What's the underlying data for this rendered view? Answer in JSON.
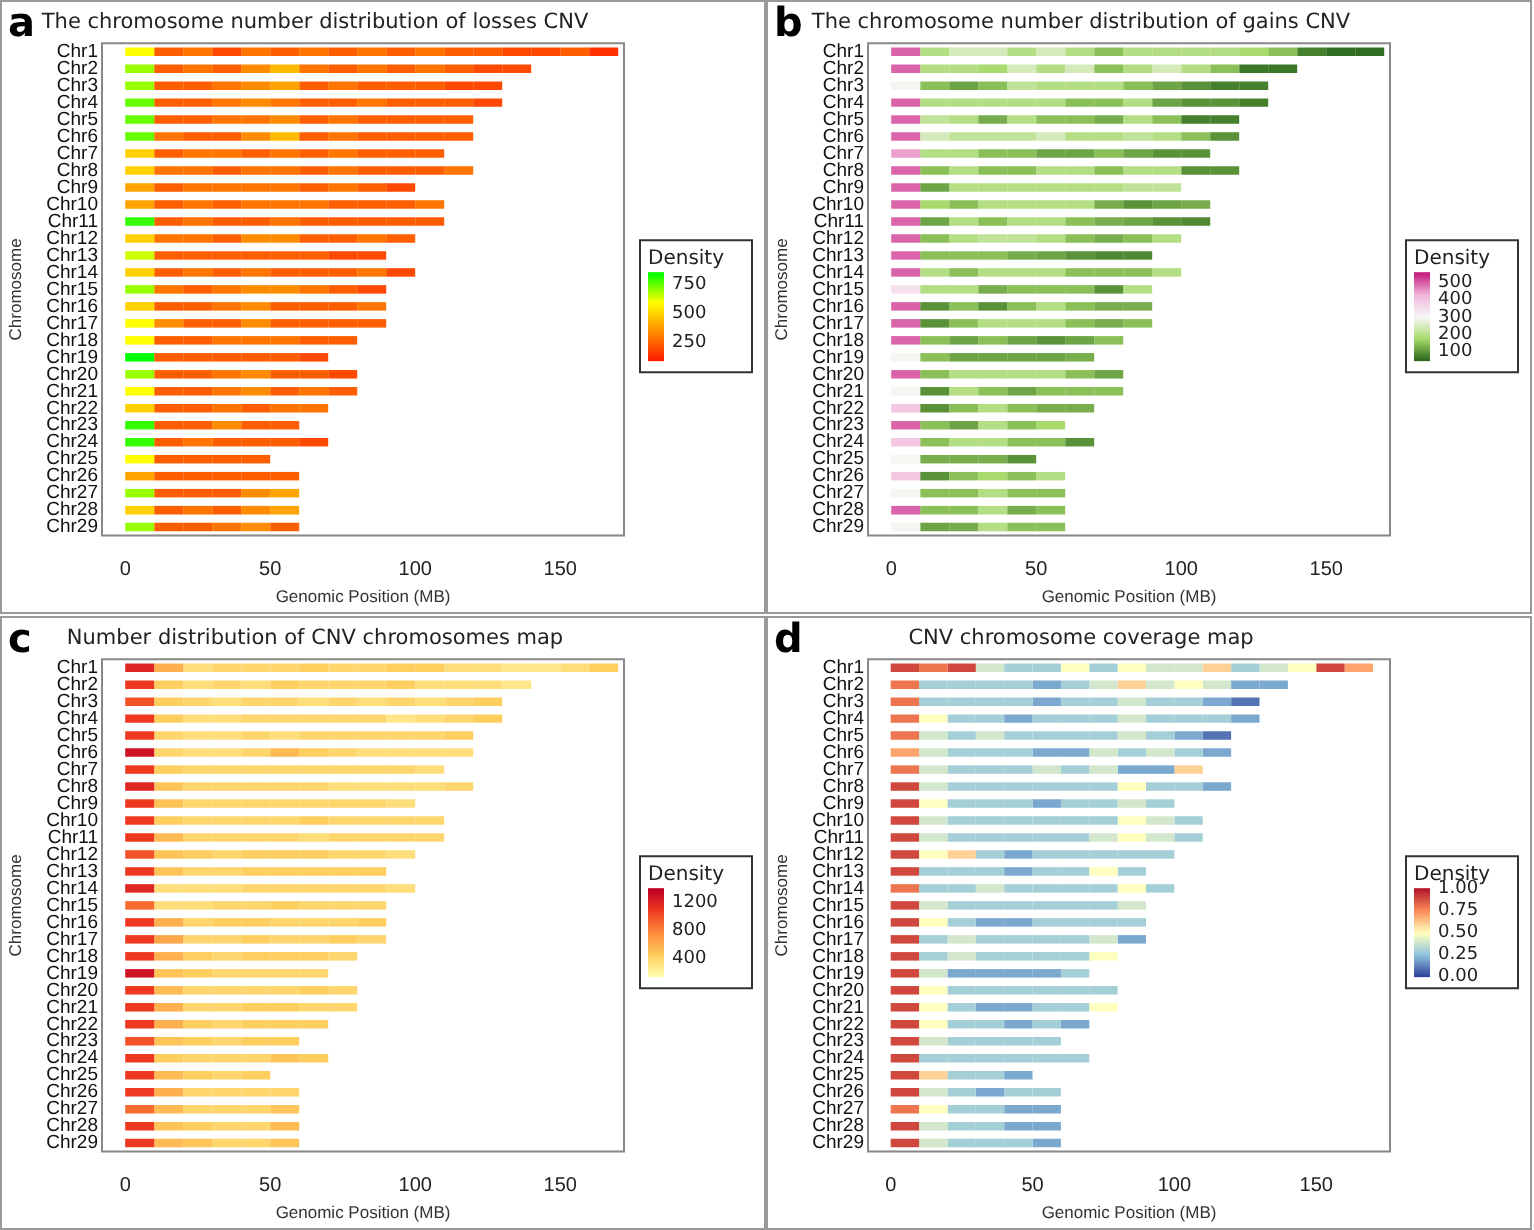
{
  "chart_data": [
    {
      "type": "heatmap",
      "title": "The chromosome number distribution of losses CNV",
      "annotations": [
        "a"
      ],
      "xlabel": "Genomic Position (MB)",
      "ylabel": "Chromosome",
      "clabel": "Density",
      "x": [
        5,
        15,
        25,
        35,
        45,
        55,
        65,
        75,
        85,
        95,
        105,
        115,
        125,
        135,
        145,
        155,
        165
      ],
      "xlim": [
        -8,
        172
      ],
      "xticks": [
        0,
        50,
        100,
        150
      ],
      "y_categories": [
        "Chr1",
        "Chr2",
        "Chr3",
        "Chr4",
        "Chr5",
        "Chr6",
        "Chr7",
        "Chr8",
        "Chr9",
        "Chr10",
        "Chr11",
        "Chr12",
        "Chr13",
        "Chr14",
        "Chr15",
        "Chr16",
        "Chr17",
        "Chr18",
        "Chr19",
        "Chr20",
        "Chr21",
        "Chr22",
        "Chr23",
        "Chr24",
        "Chr25",
        "Chr26",
        "Chr27",
        "Chr28",
        "Chr29"
      ],
      "clim": [
        100,
        850
      ],
      "cticks": [
        250,
        500,
        750
      ],
      "colors": [
        "#ff1a00",
        "#ff8c00",
        "#ffff00",
        "#00ff00"
      ],
      "cells": [
        [
          600,
          250,
          300,
          200,
          300,
          250,
          300,
          250,
          300,
          250,
          300,
          250,
          250,
          200,
          200,
          250,
          150
        ],
        [
          700,
          250,
          300,
          250,
          350,
          450,
          300,
          250,
          300,
          250,
          300,
          250,
          200,
          200
        ],
        [
          700,
          250,
          250,
          300,
          350,
          400,
          250,
          300,
          250,
          250,
          250,
          200,
          200
        ],
        [
          750,
          250,
          250,
          300,
          350,
          300,
          250,
          250,
          300,
          250,
          250,
          250,
          200
        ],
        [
          750,
          250,
          250,
          300,
          300,
          350,
          250,
          300,
          250,
          250,
          250,
          250
        ],
        [
          750,
          300,
          250,
          250,
          350,
          450,
          250,
          300,
          250,
          250,
          250,
          250
        ],
        [
          500,
          250,
          300,
          300,
          250,
          300,
          250,
          300,
          250,
          250,
          250
        ],
        [
          500,
          300,
          300,
          250,
          300,
          300,
          250,
          300,
          250,
          250,
          250,
          300
        ],
        [
          400,
          250,
          300,
          300,
          300,
          300,
          250,
          300,
          250,
          200
        ],
        [
          400,
          250,
          300,
          250,
          300,
          300,
          300,
          250,
          250,
          250,
          300
        ],
        [
          800,
          250,
          300,
          250,
          250,
          300,
          250,
          250,
          250,
          250,
          250
        ],
        [
          500,
          300,
          300,
          250,
          350,
          350,
          250,
          250,
          300,
          250
        ],
        [
          650,
          250,
          250,
          250,
          250,
          250,
          250,
          200,
          200
        ],
        [
          500,
          250,
          300,
          250,
          300,
          250,
          250,
          250,
          300,
          200
        ],
        [
          700,
          300,
          250,
          300,
          350,
          350,
          300,
          250,
          200
        ],
        [
          500,
          250,
          250,
          300,
          350,
          250,
          250,
          250,
          300
        ],
        [
          600,
          350,
          250,
          250,
          350,
          250,
          250,
          250,
          250
        ],
        [
          600,
          250,
          250,
          300,
          300,
          300,
          250,
          250
        ],
        [
          850,
          250,
          250,
          250,
          250,
          250,
          200
        ],
        [
          700,
          250,
          250,
          300,
          350,
          250,
          250,
          200
        ],
        [
          600,
          250,
          250,
          300,
          350,
          250,
          300,
          250
        ],
        [
          500,
          250,
          250,
          300,
          250,
          300,
          300
        ],
        [
          800,
          250,
          250,
          350,
          250,
          250
        ],
        [
          800,
          250,
          300,
          250,
          250,
          250,
          200
        ],
        [
          600,
          250,
          250,
          250,
          250
        ],
        [
          400,
          250,
          250,
          250,
          250,
          250
        ],
        [
          700,
          250,
          250,
          250,
          350,
          400
        ],
        [
          500,
          250,
          300,
          250,
          350,
          400
        ],
        [
          700,
          250,
          250,
          300,
          350,
          250
        ]
      ]
    },
    {
      "type": "heatmap",
      "title": "The chromosome number distribution of gains CNV",
      "annotations": [
        "b"
      ],
      "xlabel": "Genomic Position (MB)",
      "ylabel": "Chromosome",
      "clabel": "Density",
      "x": [
        5,
        15,
        25,
        35,
        45,
        55,
        65,
        75,
        85,
        95,
        105,
        115,
        125,
        135,
        145,
        155,
        165
      ],
      "xlim": [
        -8,
        172
      ],
      "xticks": [
        0,
        50,
        100,
        150
      ],
      "y_categories": [
        "Chr1",
        "Chr2",
        "Chr3",
        "Chr4",
        "Chr5",
        "Chr6",
        "Chr7",
        "Chr8",
        "Chr9",
        "Chr10",
        "Chr11",
        "Chr12",
        "Chr13",
        "Chr14",
        "Chr15",
        "Chr16",
        "Chr17",
        "Chr18",
        "Chr19",
        "Chr20",
        "Chr21",
        "Chr22",
        "Chr23",
        "Chr24",
        "Chr25",
        "Chr26",
        "Chr27",
        "Chr28",
        "Chr29"
      ],
      "clim": [
        50,
        560
      ],
      "cticks": [
        100,
        200,
        300,
        400,
        500
      ],
      "colors": [
        "#27641a",
        "#a6d96a",
        "#f7f7f7",
        "#f1b6da",
        "#c51b7d"
      ],
      "cells": [
        [
          500,
          200,
          250,
          250,
          200,
          250,
          200,
          150,
          200,
          200,
          200,
          200,
          180,
          150,
          80,
          60,
          60
        ],
        [
          500,
          200,
          200,
          180,
          250,
          200,
          250,
          150,
          200,
          250,
          200,
          150,
          70,
          70
        ],
        [
          300,
          150,
          120,
          150,
          220,
          200,
          200,
          200,
          150,
          120,
          100,
          80,
          80
        ],
        [
          500,
          200,
          200,
          200,
          200,
          200,
          150,
          150,
          200,
          120,
          100,
          100,
          80
        ],
        [
          500,
          220,
          200,
          130,
          200,
          150,
          150,
          130,
          200,
          150,
          80,
          80
        ],
        [
          500,
          250,
          220,
          220,
          220,
          250,
          200,
          200,
          220,
          200,
          150,
          100
        ],
        [
          450,
          200,
          200,
          150,
          150,
          120,
          120,
          150,
          120,
          100,
          100
        ],
        [
          500,
          150,
          200,
          150,
          150,
          200,
          200,
          150,
          200,
          200,
          100,
          100
        ],
        [
          500,
          120,
          200,
          200,
          200,
          200,
          200,
          200,
          220,
          220
        ],
        [
          500,
          180,
          150,
          200,
          200,
          200,
          200,
          130,
          100,
          120,
          130
        ],
        [
          500,
          120,
          200,
          150,
          200,
          200,
          150,
          130,
          120,
          100,
          90
        ],
        [
          500,
          150,
          200,
          220,
          220,
          200,
          150,
          130,
          150,
          200
        ],
        [
          500,
          150,
          150,
          150,
          130,
          120,
          100,
          90,
          90
        ],
        [
          500,
          200,
          150,
          200,
          200,
          200,
          150,
          150,
          150,
          200
        ],
        [
          350,
          200,
          200,
          130,
          150,
          150,
          150,
          100,
          200
        ],
        [
          500,
          100,
          150,
          100,
          150,
          200,
          150,
          130,
          130
        ],
        [
          500,
          100,
          150,
          200,
          200,
          200,
          150,
          130,
          150
        ],
        [
          500,
          150,
          120,
          150,
          120,
          100,
          120,
          150
        ],
        [
          300,
          150,
          120,
          120,
          120,
          120,
          130
        ],
        [
          500,
          150,
          200,
          200,
          200,
          200,
          150,
          120
        ],
        [
          300,
          100,
          200,
          150,
          120,
          150,
          150,
          150
        ],
        [
          400,
          100,
          150,
          200,
          150,
          130,
          130
        ],
        [
          500,
          150,
          120,
          200,
          150,
          180
        ],
        [
          400,
          150,
          200,
          200,
          150,
          150,
          100
        ],
        [
          300,
          130,
          130,
          130,
          100
        ],
        [
          400,
          100,
          150,
          180,
          150,
          200
        ],
        [
          300,
          150,
          150,
          200,
          150,
          150
        ],
        [
          500,
          150,
          150,
          200,
          130,
          150
        ],
        [
          300,
          120,
          130,
          200,
          150,
          150
        ]
      ]
    },
    {
      "type": "heatmap",
      "title": "Number distribution of CNV chromosomes map",
      "annotations": [
        "c"
      ],
      "xlabel": "Genomic Position (MB)",
      "ylabel": "Chromosome",
      "clabel": "Density",
      "x": [
        5,
        15,
        25,
        35,
        45,
        55,
        65,
        75,
        85,
        95,
        105,
        115,
        125,
        135,
        145,
        155,
        165
      ],
      "xlim": [
        -8,
        172
      ],
      "xticks": [
        0,
        50,
        100,
        150
      ],
      "y_categories": [
        "Chr1",
        "Chr2",
        "Chr3",
        "Chr4",
        "Chr5",
        "Chr6",
        "Chr7",
        "Chr8",
        "Chr9",
        "Chr10",
        "Chr11",
        "Chr12",
        "Chr13",
        "Chr14",
        "Chr15",
        "Chr16",
        "Chr17",
        "Chr18",
        "Chr19",
        "Chr20",
        "Chr21",
        "Chr22",
        "Chr23",
        "Chr24",
        "Chr25",
        "Chr26",
        "Chr27",
        "Chr28",
        "Chr29"
      ],
      "clim": [
        150,
        1400
      ],
      "cticks": [
        400,
        800,
        1200
      ],
      "colors": [
        "#ffffb2",
        "#fecc5c",
        "#fd8d3c",
        "#f03b20",
        "#bd0026"
      ],
      "cells": [
        [
          1200,
          600,
          350,
          400,
          400,
          400,
          450,
          400,
          400,
          450,
          450,
          350,
          350,
          300,
          300,
          350,
          450
        ],
        [
          1100,
          450,
          350,
          400,
          350,
          450,
          400,
          400,
          400,
          450,
          350,
          350,
          350,
          300
        ],
        [
          1000,
          450,
          400,
          350,
          400,
          400,
          350,
          400,
          350,
          400,
          350,
          400,
          450
        ],
        [
          1100,
          450,
          350,
          350,
          400,
          400,
          400,
          400,
          400,
          300,
          350,
          400,
          450
        ],
        [
          1100,
          400,
          350,
          350,
          400,
          350,
          400,
          400,
          400,
          400,
          400,
          450
        ],
        [
          1300,
          400,
          350,
          350,
          400,
          550,
          450,
          400,
          350,
          350,
          350,
          350
        ],
        [
          1100,
          450,
          400,
          400,
          400,
          400,
          400,
          400,
          400,
          400,
          350
        ],
        [
          1200,
          500,
          400,
          400,
          400,
          400,
          400,
          350,
          350,
          350,
          350,
          400
        ],
        [
          1100,
          500,
          400,
          400,
          400,
          400,
          400,
          400,
          400,
          350
        ],
        [
          1100,
          450,
          400,
          400,
          400,
          400,
          450,
          400,
          400,
          400,
          400
        ],
        [
          1100,
          550,
          400,
          400,
          400,
          400,
          350,
          400,
          400,
          400,
          400
        ],
        [
          1000,
          500,
          450,
          400,
          450,
          450,
          450,
          400,
          400,
          350
        ],
        [
          1100,
          500,
          400,
          400,
          450,
          450,
          450,
          450,
          450
        ],
        [
          1200,
          350,
          350,
          350,
          400,
          400,
          400,
          400,
          400,
          350
        ],
        [
          900,
          350,
          350,
          400,
          400,
          450,
          400,
          400,
          400
        ],
        [
          1100,
          600,
          400,
          450,
          450,
          400,
          400,
          400,
          450
        ],
        [
          1100,
          650,
          400,
          400,
          450,
          400,
          400,
          450,
          400
        ],
        [
          1100,
          600,
          450,
          400,
          450,
          450,
          450,
          400
        ],
        [
          1300,
          500,
          450,
          400,
          400,
          400,
          400
        ],
        [
          1100,
          550,
          400,
          400,
          400,
          400,
          450,
          400
        ],
        [
          1100,
          600,
          400,
          400,
          450,
          450,
          400,
          400
        ],
        [
          1100,
          600,
          450,
          400,
          450,
          450,
          450
        ],
        [
          1000,
          500,
          450,
          400,
          450,
          450
        ],
        [
          1100,
          450,
          400,
          400,
          400,
          500,
          450
        ],
        [
          1100,
          550,
          450,
          400,
          450
        ],
        [
          1100,
          600,
          400,
          400,
          400,
          400
        ],
        [
          900,
          550,
          400,
          400,
          400,
          500
        ],
        [
          1100,
          500,
          450,
          400,
          400,
          550
        ],
        [
          1100,
          550,
          500,
          400,
          400,
          500
        ]
      ]
    },
    {
      "type": "heatmap",
      "title": "CNV chromosome coverage map",
      "annotations": [
        "d"
      ],
      "xlabel": "Genomic Position (MB)",
      "ylabel": "Chromosome",
      "clabel": "Density",
      "x": [
        5,
        15,
        25,
        35,
        45,
        55,
        65,
        75,
        85,
        95,
        105,
        115,
        125,
        135,
        145,
        155,
        165
      ],
      "xlim": [
        -8,
        176
      ],
      "xticks": [
        0,
        50,
        100,
        150
      ],
      "y_categories": [
        "Chr1",
        "Chr2",
        "Chr3",
        "Chr4",
        "Chr5",
        "Chr6",
        "Chr7",
        "Chr8",
        "Chr9",
        "Chr10",
        "Chr11",
        "Chr12",
        "Chr13",
        "Chr14",
        "Chr15",
        "Chr16",
        "Chr17",
        "Chr18",
        "Chr19",
        "Chr20",
        "Chr21",
        "Chr22",
        "Chr23",
        "Chr24",
        "Chr25",
        "Chr26",
        "Chr27",
        "Chr28",
        "Chr29"
      ],
      "clim": [
        0,
        1
      ],
      "cticks": [
        {
          "value": 0,
          "label": "0.00"
        },
        {
          "value": 0.25,
          "label": "0.25"
        },
        {
          "value": 0.5,
          "label": "0.50"
        },
        {
          "value": 0.75,
          "label": "0.75"
        },
        {
          "value": 1,
          "label": "1.00"
        }
      ],
      "colors": [
        "#2c3e99",
        "#8fc3dd",
        "#ffffbf",
        "#fc8d59",
        "#b2182b"
      ],
      "cells": [
        [
          0.9,
          0.8,
          0.9,
          0.4,
          0.3,
          0.3,
          0.5,
          0.3,
          0.5,
          0.4,
          0.4,
          0.6,
          0.3,
          0.4,
          0.5,
          0.9,
          0.7
        ],
        [
          0.8,
          0.3,
          0.3,
          0.3,
          0.3,
          0.2,
          0.3,
          0.4,
          0.6,
          0.4,
          0.5,
          0.4,
          0.2,
          0.2
        ],
        [
          0.8,
          0.3,
          0.3,
          0.3,
          0.3,
          0.2,
          0.3,
          0.3,
          0.4,
          0.3,
          0.3,
          0.2,
          0.1
        ],
        [
          0.8,
          0.5,
          0.3,
          0.3,
          0.2,
          0.3,
          0.3,
          0.3,
          0.4,
          0.3,
          0.3,
          0.3,
          0.2
        ],
        [
          0.8,
          0.4,
          0.3,
          0.4,
          0.3,
          0.3,
          0.3,
          0.3,
          0.4,
          0.3,
          0.2,
          0.1
        ],
        [
          0.7,
          0.4,
          0.3,
          0.3,
          0.3,
          0.2,
          0.2,
          0.4,
          0.3,
          0.4,
          0.3,
          0.2
        ],
        [
          0.8,
          0.4,
          0.3,
          0.3,
          0.3,
          0.4,
          0.3,
          0.4,
          0.2,
          0.2,
          0.6
        ],
        [
          0.9,
          0.4,
          0.3,
          0.3,
          0.3,
          0.3,
          0.3,
          0.3,
          0.5,
          0.3,
          0.3,
          0.2
        ],
        [
          0.9,
          0.5,
          0.3,
          0.3,
          0.3,
          0.2,
          0.3,
          0.3,
          0.4,
          0.3
        ],
        [
          0.9,
          0.4,
          0.3,
          0.3,
          0.3,
          0.3,
          0.3,
          0.3,
          0.5,
          0.4,
          0.3
        ],
        [
          0.9,
          0.4,
          0.3,
          0.3,
          0.3,
          0.3,
          0.3,
          0.4,
          0.5,
          0.4,
          0.3
        ],
        [
          0.9,
          0.5,
          0.6,
          0.3,
          0.2,
          0.3,
          0.3,
          0.3,
          0.3,
          0.3
        ],
        [
          0.9,
          0.3,
          0.3,
          0.3,
          0.2,
          0.3,
          0.3,
          0.5,
          0.3
        ],
        [
          0.8,
          0.3,
          0.3,
          0.4,
          0.3,
          0.3,
          0.3,
          0.3,
          0.5,
          0.3
        ],
        [
          0.9,
          0.4,
          0.3,
          0.3,
          0.3,
          0.3,
          0.3,
          0.3,
          0.4
        ],
        [
          0.9,
          0.5,
          0.3,
          0.2,
          0.2,
          0.3,
          0.3,
          0.3,
          0.3
        ],
        [
          0.9,
          0.3,
          0.4,
          0.3,
          0.3,
          0.3,
          0.3,
          0.4,
          0.2
        ],
        [
          0.9,
          0.3,
          0.4,
          0.3,
          0.3,
          0.3,
          0.3,
          0.5
        ],
        [
          0.9,
          0.4,
          0.2,
          0.2,
          0.2,
          0.2,
          0.3
        ],
        [
          0.9,
          0.5,
          0.3,
          0.3,
          0.3,
          0.3,
          0.3,
          0.3
        ],
        [
          0.9,
          0.5,
          0.3,
          0.2,
          0.2,
          0.3,
          0.3,
          0.5
        ],
        [
          0.9,
          0.5,
          0.3,
          0.3,
          0.2,
          0.3,
          0.2
        ],
        [
          0.9,
          0.4,
          0.3,
          0.3,
          0.3,
          0.3
        ],
        [
          0.9,
          0.3,
          0.3,
          0.3,
          0.3,
          0.3,
          0.3
        ],
        [
          0.9,
          0.6,
          0.3,
          0.3,
          0.2
        ],
        [
          0.9,
          0.4,
          0.3,
          0.2,
          0.3,
          0.3
        ],
        [
          0.8,
          0.5,
          0.3,
          0.3,
          0.2,
          0.2
        ],
        [
          0.9,
          0.4,
          0.3,
          0.3,
          0.2,
          0.2
        ],
        [
          0.9,
          0.4,
          0.3,
          0.3,
          0.3,
          0.2
        ]
      ]
    }
  ]
}
